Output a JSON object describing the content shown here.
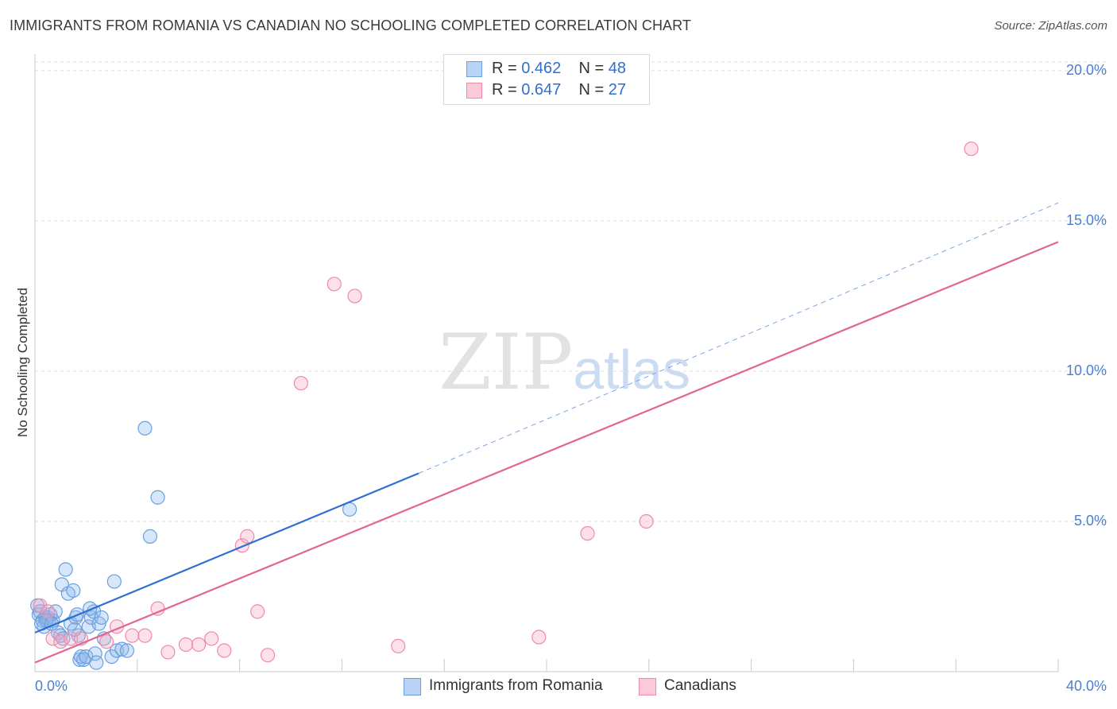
{
  "title": "IMMIGRANTS FROM ROMANIA VS CANADIAN NO SCHOOLING COMPLETED CORRELATION CHART",
  "source": "Source: ZipAtlas.com",
  "watermark": {
    "zip": "ZIP",
    "atlas": "atlas"
  },
  "legend": [
    {
      "r_label": "R = ",
      "r_value": "0.462",
      "n_label": "N = ",
      "n_value": "48",
      "color": "#6a9fe0"
    },
    {
      "r_label": "R = ",
      "r_value": "0.647",
      "n_label": "N = ",
      "n_value": "27",
      "color": "#f08aaa"
    }
  ],
  "chart_data": {
    "type": "scatter",
    "title": "IMMIGRANTS FROM ROMANIA VS CANADIAN NO SCHOOLING COMPLETED CORRELATION CHART",
    "xlabel": "",
    "ylabel": "No Schooling Completed",
    "xlim": [
      0,
      40
    ],
    "ylim": [
      0,
      20.5
    ],
    "x_tick_labels": [
      "0.0%",
      "40.0%"
    ],
    "y_ticks": [
      5,
      10,
      15,
      20
    ],
    "y_tick_labels": [
      "5.0%",
      "10.0%",
      "15.0%",
      "20.0%"
    ],
    "series": [
      {
        "name": "Immigrants from Romania",
        "color": "#6a9fe0",
        "trend": {
          "x": [
            0,
            15
          ],
          "y": [
            1.3,
            6.6
          ],
          "dashed_to": [
            40,
            15.6
          ]
        },
        "points": [
          [
            0.1,
            2.2
          ],
          [
            0.15,
            1.9
          ],
          [
            0.2,
            2.0
          ],
          [
            0.3,
            1.7
          ],
          [
            0.35,
            1.5
          ],
          [
            0.4,
            1.8
          ],
          [
            0.5,
            1.8
          ],
          [
            0.55,
            1.7
          ],
          [
            0.6,
            1.9
          ],
          [
            0.7,
            1.7
          ],
          [
            0.8,
            2.0
          ],
          [
            0.9,
            1.3
          ],
          [
            1.0,
            1.2
          ],
          [
            1.05,
            2.9
          ],
          [
            1.1,
            1.1
          ],
          [
            1.2,
            3.4
          ],
          [
            1.3,
            2.6
          ],
          [
            1.4,
            1.6
          ],
          [
            1.5,
            2.7
          ],
          [
            1.6,
            1.8
          ],
          [
            1.65,
            1.9
          ],
          [
            1.7,
            1.2
          ],
          [
            1.75,
            0.4
          ],
          [
            1.8,
            0.5
          ],
          [
            1.9,
            0.4
          ],
          [
            2.0,
            0.5
          ],
          [
            2.1,
            1.5
          ],
          [
            2.2,
            1.8
          ],
          [
            2.3,
            2.0
          ],
          [
            2.35,
            0.6
          ],
          [
            2.4,
            0.3
          ],
          [
            2.5,
            1.6
          ],
          [
            2.6,
            1.8
          ],
          [
            2.7,
            1.1
          ],
          [
            3.0,
            0.5
          ],
          [
            3.1,
            3.0
          ],
          [
            3.2,
            0.7
          ],
          [
            3.4,
            0.75
          ],
          [
            3.6,
            0.7
          ],
          [
            4.3,
            8.1
          ],
          [
            4.5,
            4.5
          ],
          [
            4.8,
            5.8
          ],
          [
            12.3,
            5.4
          ],
          [
            0.25,
            1.6
          ],
          [
            0.45,
            1.7
          ],
          [
            0.65,
            1.6
          ],
          [
            1.55,
            1.4
          ],
          [
            2.15,
            2.1
          ]
        ]
      },
      {
        "name": "Canadians",
        "color": "#f08aaa",
        "trend": {
          "x": [
            0,
            40
          ],
          "y": [
            0.3,
            14.3
          ]
        },
        "points": [
          [
            0.2,
            2.2
          ],
          [
            0.5,
            2.0
          ],
          [
            0.7,
            1.1
          ],
          [
            1.0,
            1.0
          ],
          [
            1.4,
            1.1
          ],
          [
            1.8,
            1.1
          ],
          [
            2.8,
            1.0
          ],
          [
            3.2,
            1.5
          ],
          [
            3.8,
            1.2
          ],
          [
            4.3,
            1.2
          ],
          [
            4.8,
            2.1
          ],
          [
            5.2,
            0.65
          ],
          [
            5.9,
            0.9
          ],
          [
            6.4,
            0.9
          ],
          [
            6.9,
            1.1
          ],
          [
            7.4,
            0.7
          ],
          [
            8.1,
            4.2
          ],
          [
            8.3,
            4.5
          ],
          [
            8.7,
            2.0
          ],
          [
            9.1,
            0.55
          ],
          [
            10.4,
            9.6
          ],
          [
            11.7,
            12.9
          ],
          [
            12.5,
            12.5
          ],
          [
            14.2,
            0.85
          ],
          [
            19.7,
            1.15
          ],
          [
            21.6,
            4.6
          ],
          [
            23.9,
            5.0
          ]
        ],
        "outlier": [
          36.6,
          17.4
        ]
      }
    ]
  }
}
